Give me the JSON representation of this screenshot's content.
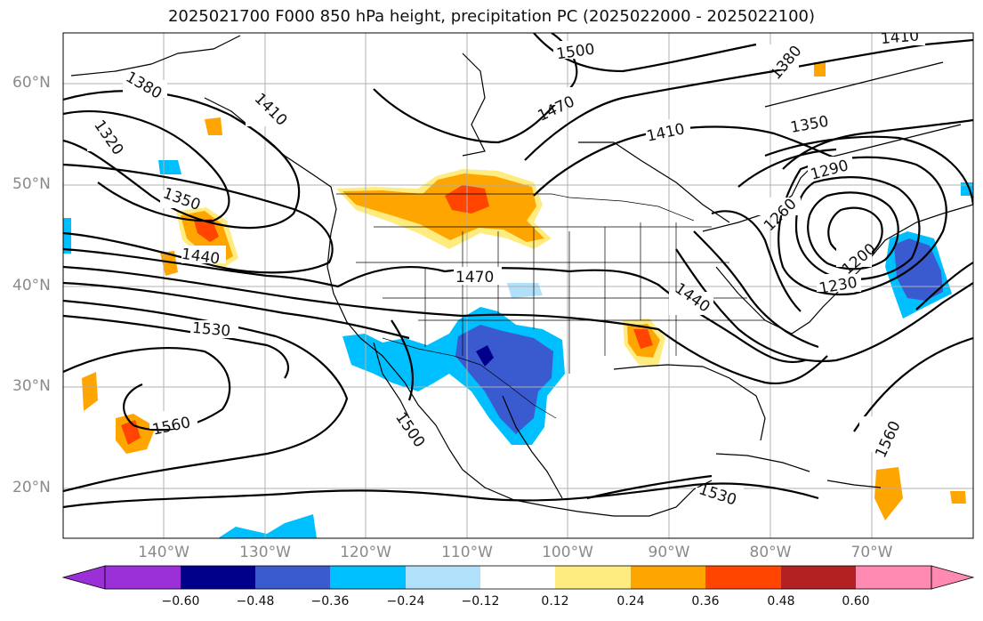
{
  "title": "2025021700 F000 850 hPa height, precipitation PC (2025022000 - 2025022100)",
  "latitude_labels": [
    "60°N",
    "50°N",
    "40°N",
    "30°N",
    "20°N"
  ],
  "longitude_labels": [
    "140°W",
    "130°W",
    "120°W",
    "110°W",
    "100°W",
    "90°W",
    "80°W",
    "70°W"
  ],
  "colorbar": {
    "ticks": [
      "−0.60",
      "−0.48",
      "−0.36",
      "−0.24",
      "−0.12",
      "0.12",
      "0.24",
      "0.36",
      "0.48",
      "0.60"
    ],
    "colors": [
      "#9b30d9",
      "#00008b",
      "#3a5bd0",
      "#00bfff",
      "#b0e0fa",
      "#ffffff",
      "#ffec80",
      "#ffa500",
      "#ff4500",
      "#b22222",
      "#ff89b0"
    ]
  },
  "contour_labels": [
    "1500",
    "1470",
    "1410",
    "1380",
    "1350",
    "1290",
    "1260",
    "1230",
    "1200",
    "1380",
    "1320",
    "1410",
    "1350",
    "1440",
    "1470",
    "1530",
    "1560",
    "1500",
    "1440",
    "1530",
    "1560",
    "1410"
  ],
  "colors": {
    "frame": "#000000",
    "grid": "#b0b0b0",
    "contour": "#000000"
  }
}
